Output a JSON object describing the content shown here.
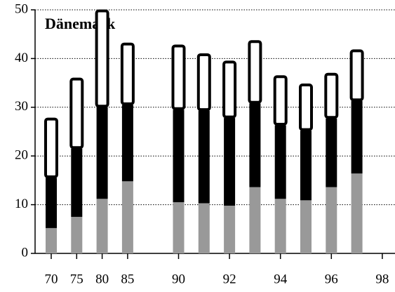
{
  "chart_data": {
    "type": "stacked-bar",
    "title": "Dänemark",
    "categories": [
      "70",
      "75",
      "80",
      "85",
      null,
      "90",
      null,
      "92",
      null,
      "94",
      null,
      "96",
      null,
      "98"
    ],
    "series": [
      {
        "color": "#999999",
        "values": [
          5.2,
          7.5,
          11.2,
          14.8,
          null,
          10.5,
          10.3,
          9.8,
          13.6,
          11.2,
          10.9,
          13.6,
          16.4,
          null
        ]
      },
      {
        "color": "#000000",
        "values": [
          10.3,
          14,
          18.8,
          15.7,
          null,
          19,
          19,
          18,
          17.2,
          15.1,
          14.3,
          14.1,
          14.9,
          null
        ]
      },
      {
        "color": "#ffffff",
        "values": [
          12.3,
          14.5,
          20,
          12.7,
          null,
          13.3,
          11.7,
          11.7,
          12.9,
          10.2,
          9.6,
          9.3,
          10.5,
          null
        ]
      }
    ],
    "ylim": [
      0,
      50
    ],
    "yticks": [
      0,
      10,
      20,
      30,
      40,
      50
    ],
    "grid": true
  }
}
